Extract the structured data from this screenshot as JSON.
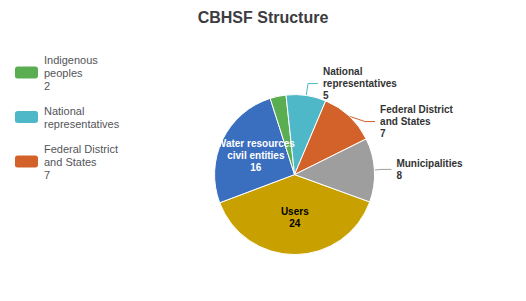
{
  "chart_data": {
    "type": "pie",
    "title": "CBHSF Structure",
    "categories": [
      "Users\n24",
      "Water resources\ncivil entities\n16",
      null,
      "National\nrepresentatives\n5",
      "Federal District\nand States\n7",
      "Municipalities\n8"
    ],
    "values": [
      24,
      16,
      2,
      5,
      7,
      8
    ],
    "colors": [
      "#C8A000",
      "#3A6EBF",
      "#5BAD52",
      "#4EB8C8",
      "#D2622A",
      "#9E9E9E"
    ],
    "legend_labels": [
      null,
      null,
      "Indigenous\npeoples\n2",
      "National\nrepresentatives",
      "Federal District\nand States\n7",
      null
    ]
  }
}
